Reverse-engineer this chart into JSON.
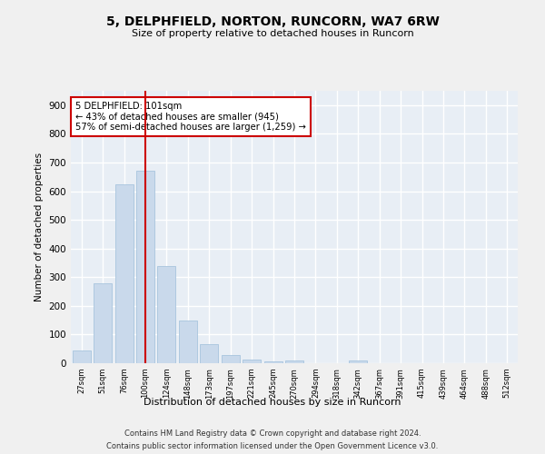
{
  "title_line1": "5, DELPHFIELD, NORTON, RUNCORN, WA7 6RW",
  "title_line2": "Size of property relative to detached houses in Runcorn",
  "xlabel": "Distribution of detached houses by size in Runcorn",
  "ylabel": "Number of detached properties",
  "bar_color": "#c9d9eb",
  "bar_edge_color": "#a8c4de",
  "background_color": "#e8eef5",
  "grid_color": "#ffffff",
  "annotation_line_color": "#cc0000",
  "annotation_box_color": "#cc0000",
  "categories": [
    "27sqm",
    "51sqm",
    "76sqm",
    "100sqm",
    "124sqm",
    "148sqm",
    "173sqm",
    "197sqm",
    "221sqm",
    "245sqm",
    "270sqm",
    "294sqm",
    "318sqm",
    "342sqm",
    "367sqm",
    "391sqm",
    "415sqm",
    "439sqm",
    "464sqm",
    "488sqm",
    "512sqm"
  ],
  "values": [
    43,
    280,
    625,
    670,
    340,
    148,
    65,
    30,
    13,
    5,
    10,
    0,
    0,
    8,
    0,
    0,
    0,
    0,
    0,
    0,
    0
  ],
  "property_bin_index": 3,
  "annotation_text_line1": "5 DELPHFIELD: 101sqm",
  "annotation_text_line2": "← 43% of detached houses are smaller (945)",
  "annotation_text_line3": "57% of semi-detached houses are larger (1,259) →",
  "footnote_line1": "Contains HM Land Registry data © Crown copyright and database right 2024.",
  "footnote_line2": "Contains public sector information licensed under the Open Government Licence v3.0.",
  "ylim": [
    0,
    950
  ],
  "yticks": [
    0,
    100,
    200,
    300,
    400,
    500,
    600,
    700,
    800,
    900
  ]
}
